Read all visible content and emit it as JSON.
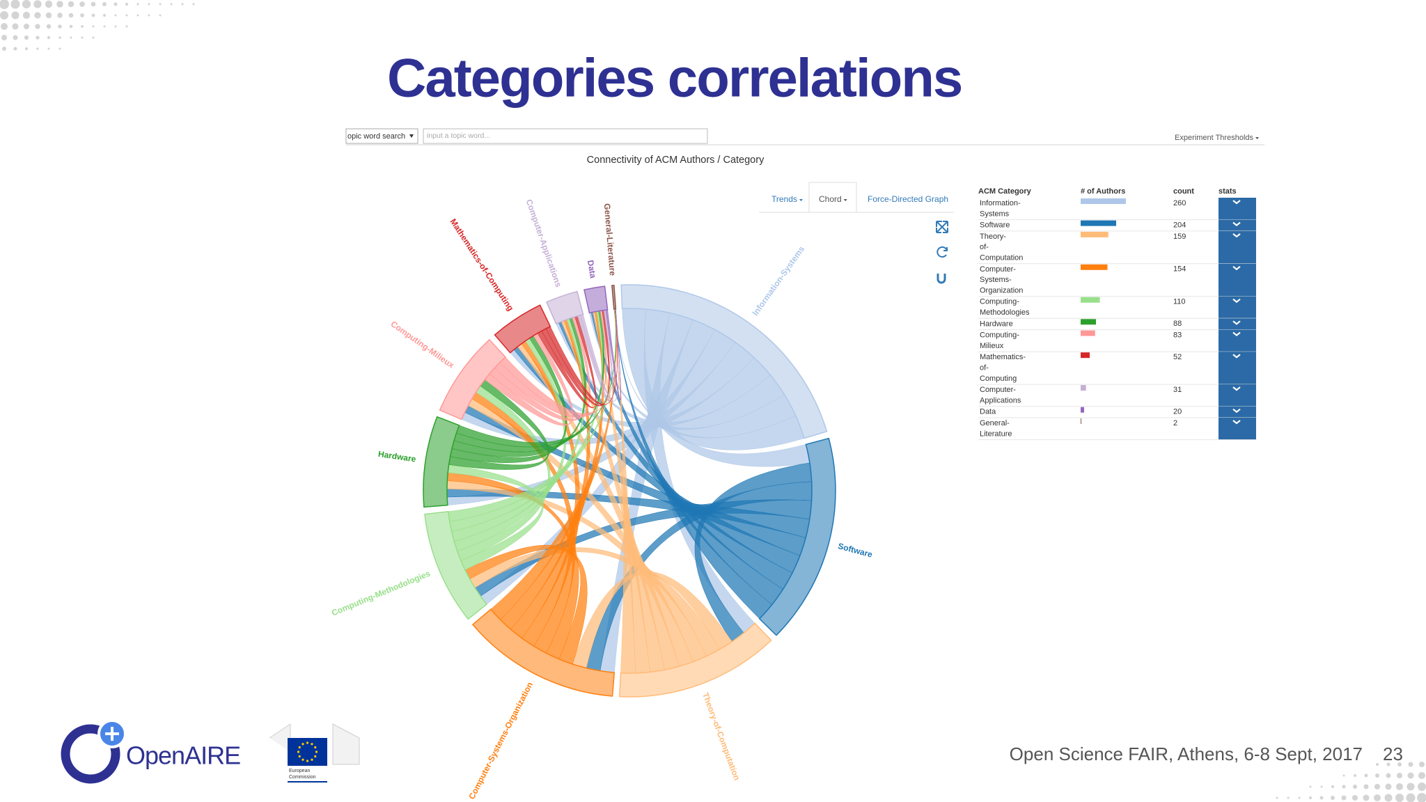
{
  "title": "Categories correlations",
  "toolbar": {
    "search_mode": "opic word search",
    "search_placeholder": "input a topic word...",
    "thresholds": "Experiment Thresholds"
  },
  "chart_title": "Connectivity of ACM Authors / Category",
  "tabs": [
    "Trends",
    "Chord",
    "Force-Directed Graph"
  ],
  "table": {
    "headers": [
      "ACM Category",
      "# of Authors",
      "count",
      "stats"
    ],
    "rows": [
      {
        "category": "Information-Systems",
        "count": 260,
        "color": "#aec7e8"
      },
      {
        "category": "Software",
        "count": 204,
        "color": "#1f77b4"
      },
      {
        "category": "Theory-of-Computation",
        "count": 159,
        "color": "#ffbb78"
      },
      {
        "category": "Computer-Systems-Organization",
        "count": 154,
        "color": "#ff7f0e"
      },
      {
        "category": "Computing-Methodologies",
        "count": 110,
        "color": "#98df8a"
      },
      {
        "category": "Hardware",
        "count": 88,
        "color": "#2ca02c"
      },
      {
        "category": "Computing-Milieux",
        "count": 83,
        "color": "#ff9896"
      },
      {
        "category": "Mathematics-of-Computing",
        "count": 52,
        "color": "#d62728"
      },
      {
        "category": "Computer-Applications",
        "count": 31,
        "color": "#c5b0d5"
      },
      {
        "category": "Data",
        "count": 20,
        "color": "#9467bd"
      },
      {
        "category": "General-Literature",
        "count": 2,
        "color": "#8c564b"
      }
    ]
  },
  "footer": {
    "logo_text": "OpenAIRE",
    "eu_text": [
      "European",
      "Commission"
    ],
    "event": "Open Science FAIR, Athens, 6-8 Sept, 2017",
    "page": 23
  }
}
